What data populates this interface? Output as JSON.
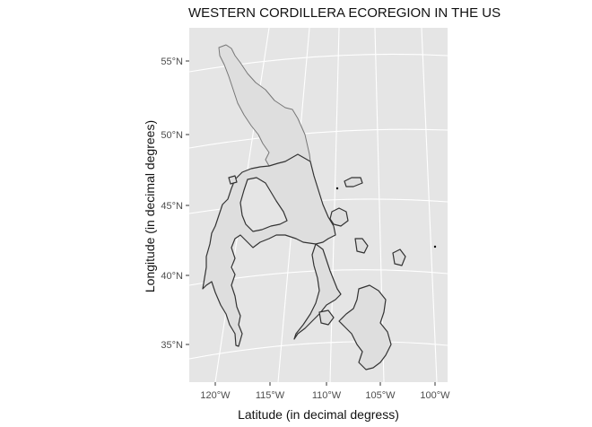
{
  "title": "WESTERN CORDILLERA ECOREGION IN THE US",
  "axes": {
    "x_label": "Latitude (in decimal degress)",
    "y_label": "Longitude (in decimal degrees)",
    "x_ticks": [
      "120°W",
      "115°W",
      "110°W",
      "105°W",
      "100°W"
    ],
    "y_ticks": [
      "55°N",
      "50°N",
      "45°N",
      "40°N",
      "35°N"
    ]
  },
  "style": {
    "panel_bg": "#e5e5e5",
    "grid": "#ffffff",
    "region_fill": "#dedede",
    "region_stroke": "#333333",
    "border_stroke": "#777777"
  }
}
